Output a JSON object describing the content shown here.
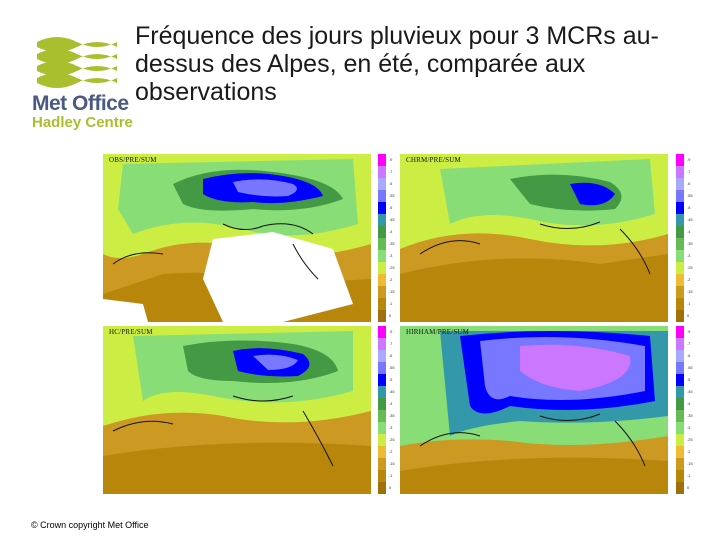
{
  "header": {
    "title": "Fréquence des jours pluvieux pour 3 MCRs au-dessus des Alpes, en été, comparée aux observations"
  },
  "logo": {
    "name": "Met Office",
    "subtitle": "Hadley Centre",
    "text_color": "#4a5a80",
    "accent_color": "#a9bf2e"
  },
  "panels": [
    {
      "label": "OBS/PRE/SUM",
      "observed_mask": true,
      "wet_level": 0.55
    },
    {
      "label": "CHRM/PRE/SUM",
      "observed_mask": false,
      "wet_level": 0.35
    },
    {
      "label": "HC/PRE/SUM",
      "observed_mask": false,
      "wet_level": 0.5
    },
    {
      "label": "HIRHAM/PRE/SUM",
      "observed_mask": false,
      "wet_level": 0.9
    }
  ],
  "colorbar": {
    "colors": [
      "#ff00ff",
      "#cc77ff",
      "#a9a9ff",
      "#7777ff",
      "#0000ff",
      "#3399aa",
      "#449944",
      "#66bb55",
      "#88dd77",
      "#ccee44",
      "#eebb33",
      "#cc9922",
      "#b8860b",
      "#a0700a"
    ],
    "tick_labels": [
      ".9",
      ".7",
      ".6",
      ".55",
      ".5",
      ".45",
      ".4",
      ".35",
      ".3",
      ".25",
      ".2",
      ".15",
      ".1",
      "0"
    ]
  },
  "footer": {
    "copyright": "© Crown copyright   Met Office"
  }
}
